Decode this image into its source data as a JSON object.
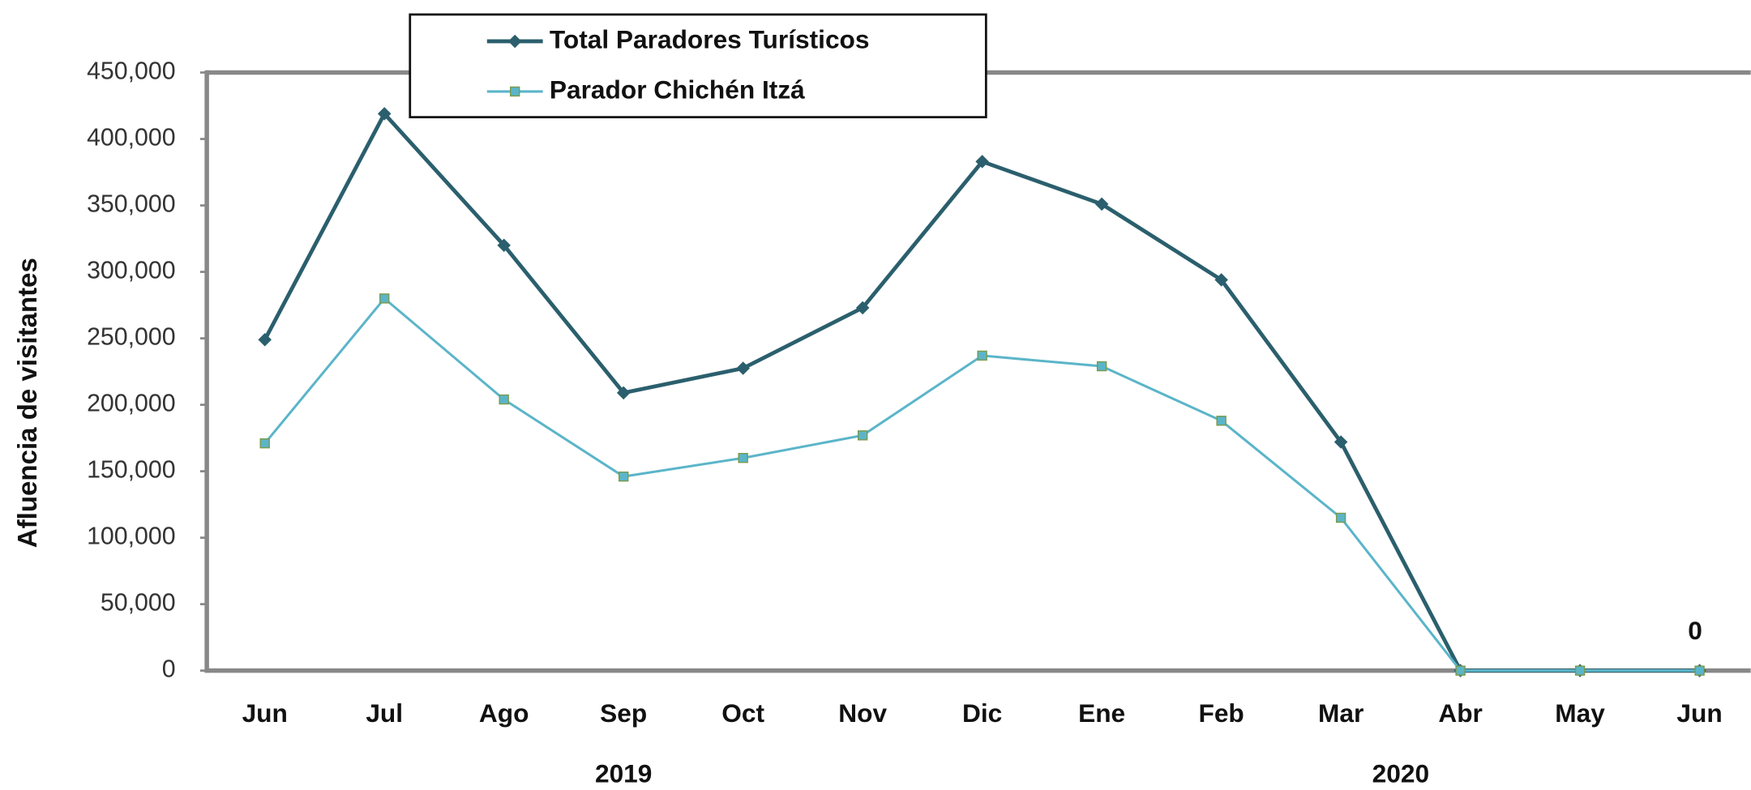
{
  "chart_data": {
    "type": "line",
    "y_label": "Afluencia de visitantes",
    "categories": [
      "Jun",
      "Jul",
      "Ago",
      "Sep",
      "Oct",
      "Nov",
      "Dic",
      "Ene",
      "Feb",
      "Mar",
      "Abr",
      "May",
      "Jun"
    ],
    "x_groups": [
      {
        "label": "2019",
        "start": 0,
        "end": 6
      },
      {
        "label": "2020",
        "start": 7,
        "end": 12
      }
    ],
    "series": [
      {
        "name": "Total Paradores Turísticos",
        "color": "#2b5f6d",
        "marker": "diamond",
        "values": [
          249000,
          419000,
          320000,
          209000,
          227500,
          273000,
          383000,
          351000,
          294000,
          172000,
          0,
          0,
          0
        ]
      },
      {
        "name": "Parador Chichén Itzá",
        "color": "#5bb5c9",
        "marker": "square",
        "values": [
          171000,
          280000,
          204000,
          146000,
          160000,
          177000,
          237000,
          229000,
          188000,
          115000,
          0,
          0,
          0
        ]
      }
    ],
    "ylim": [
      0,
      450000
    ],
    "yticks": [
      {
        "value": 0,
        "label": "0"
      },
      {
        "value": 50000,
        "label": "50,000"
      },
      {
        "value": 100000,
        "label": "100,000"
      },
      {
        "value": 150000,
        "label": "150,000"
      },
      {
        "value": 200000,
        "label": "200,000"
      },
      {
        "value": 250000,
        "label": "250,000"
      },
      {
        "value": 300000,
        "label": "300,000"
      },
      {
        "value": 350000,
        "label": "350,000"
      },
      {
        "value": 400000,
        "label": "400,000"
      },
      {
        "value": 450000,
        "label": "450,000"
      }
    ],
    "grid": false,
    "legend": "top"
  }
}
